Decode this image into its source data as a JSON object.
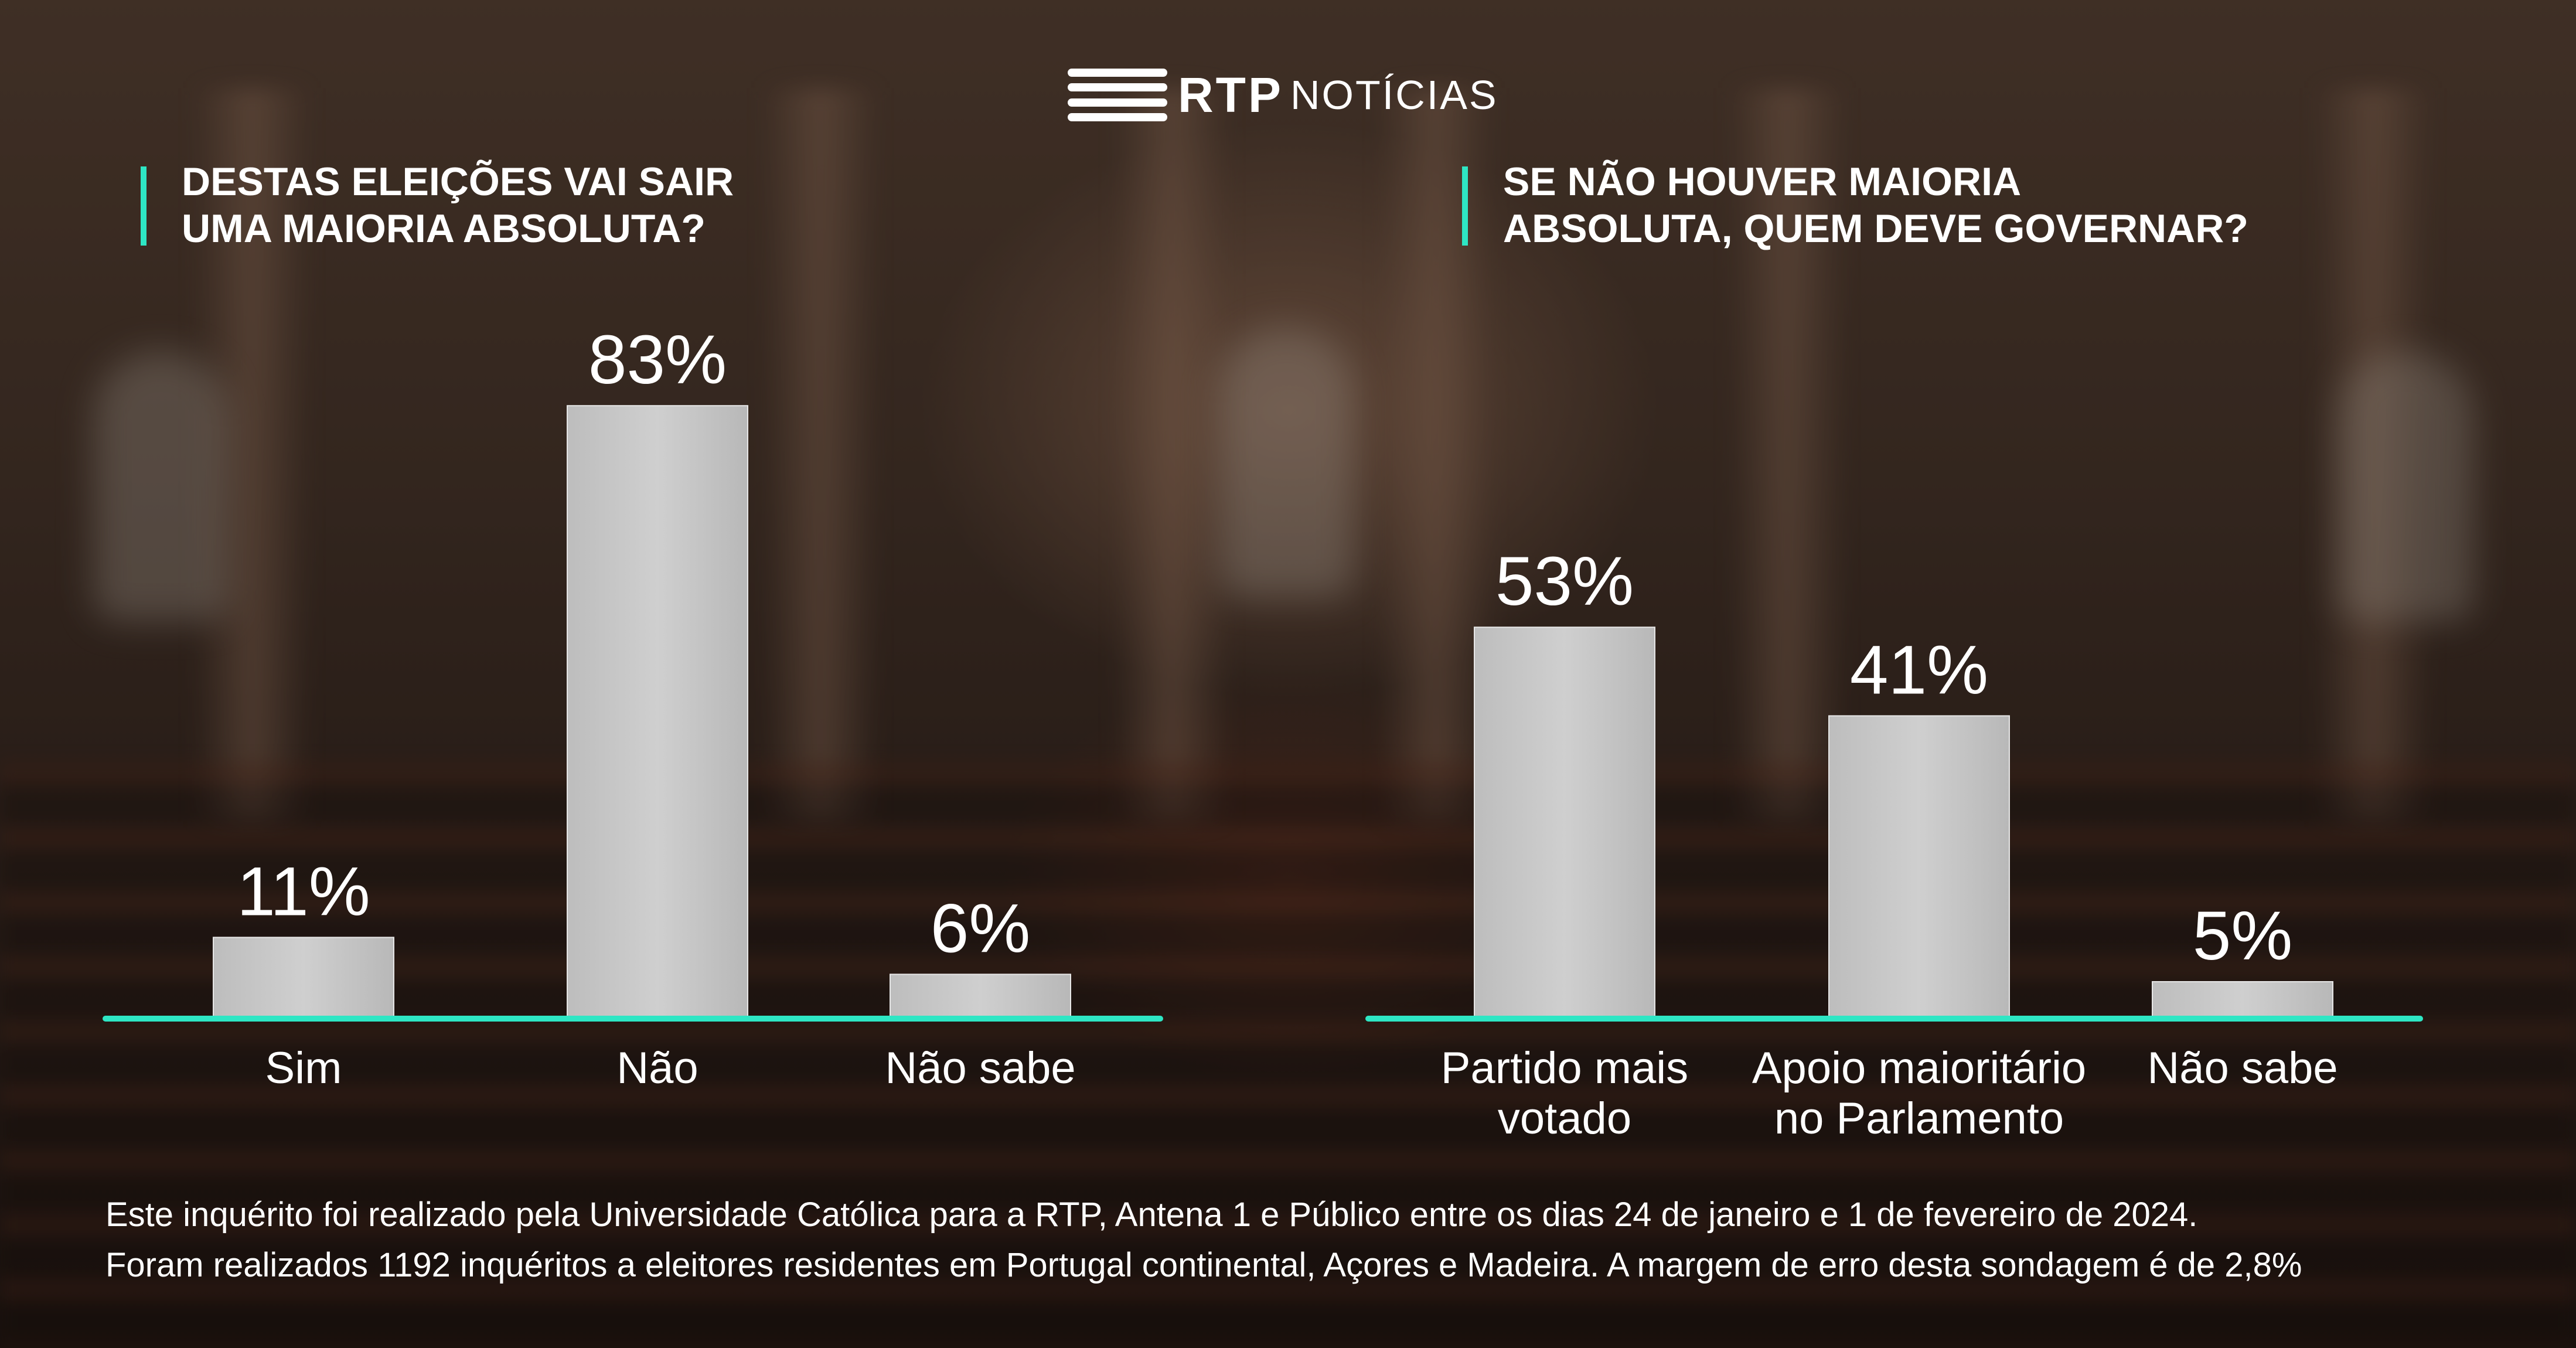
{
  "logo": {
    "brand": "RTP",
    "sub": "NOTÍCIAS"
  },
  "colors": {
    "accent": "#2ee6c4",
    "bar": "#cfcfcf"
  },
  "chart_data": [
    {
      "type": "bar",
      "title_lines": [
        "DESTAS ELEIÇÕES VAI SAIR",
        "UMA MAIORIA ABSOLUTA?"
      ],
      "categories": [
        [
          "Sim"
        ],
        [
          "Não"
        ],
        [
          "Não sabe"
        ]
      ],
      "values": [
        11,
        83,
        6
      ],
      "value_labels": [
        "11%",
        "83%",
        "6%"
      ],
      "unit": "%",
      "ylim": [
        0,
        100
      ],
      "grid": false
    },
    {
      "type": "bar",
      "title_lines": [
        "SE NÃO HOUVER MAIORIA",
        "ABSOLUTA, QUEM DEVE GOVERNAR?"
      ],
      "categories": [
        [
          "Partido mais",
          "votado"
        ],
        [
          "Apoio maioritário",
          "no Parlamento"
        ],
        [
          "Não sabe"
        ]
      ],
      "values": [
        53,
        41,
        5
      ],
      "value_labels": [
        "53%",
        "41%",
        "5%"
      ],
      "unit": "%",
      "ylim": [
        0,
        100
      ],
      "grid": false
    }
  ],
  "footer": {
    "line1": "Este inquérito foi realizado pela Universidade Católica para a RTP, Antena 1 e Público entre os dias 24 de janeiro e 1 de fevereiro de 2024.",
    "line2": "Foram realizados 1192 inquéritos a eleitores residentes em Portugal continental, Açores e Madeira. A margem de erro desta sondagem é de 2,8%"
  }
}
